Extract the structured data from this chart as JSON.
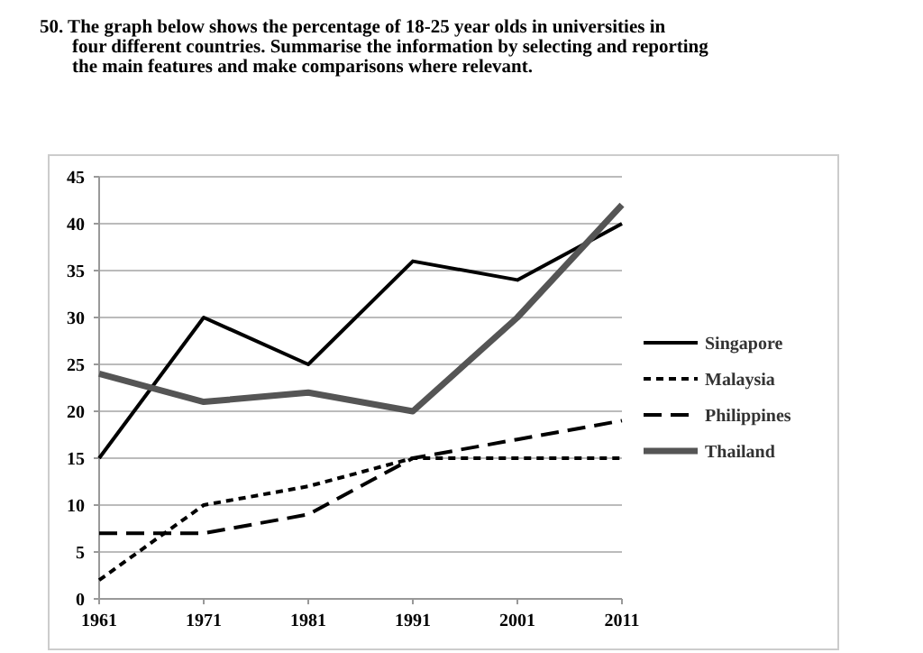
{
  "chart_data": {
    "type": "line",
    "title": "50. The graph below shows the percentage of 18-25 year olds in universities in four different countries. Summarise the information by selecting and reporting the main features and make comparisons where relevant.",
    "categories": [
      "1961",
      "1971",
      "1981",
      "1991",
      "2001",
      "2011"
    ],
    "series": [
      {
        "name": "Singapore",
        "color": "#000000",
        "line_style": "solid",
        "values": [
          15,
          30,
          25,
          36,
          34,
          40
        ]
      },
      {
        "name": "Malaysia",
        "color": "#000000",
        "line_style": "dotted",
        "values": [
          2,
          10,
          12,
          15,
          15,
          15
        ]
      },
      {
        "name": "Philippines",
        "color": "#000000",
        "line_style": "dashed",
        "values": [
          7,
          7,
          9,
          15,
          17,
          19
        ]
      },
      {
        "name": "Thailand",
        "color": "#555555",
        "line_style": "solid",
        "values": [
          24,
          21,
          22,
          20,
          30,
          42
        ]
      }
    ],
    "ylim": [
      0,
      45
    ],
    "yticks": [
      0,
      5,
      10,
      15,
      20,
      25,
      30,
      35,
      40,
      45
    ],
    "grid": "y",
    "legend": "right"
  }
}
